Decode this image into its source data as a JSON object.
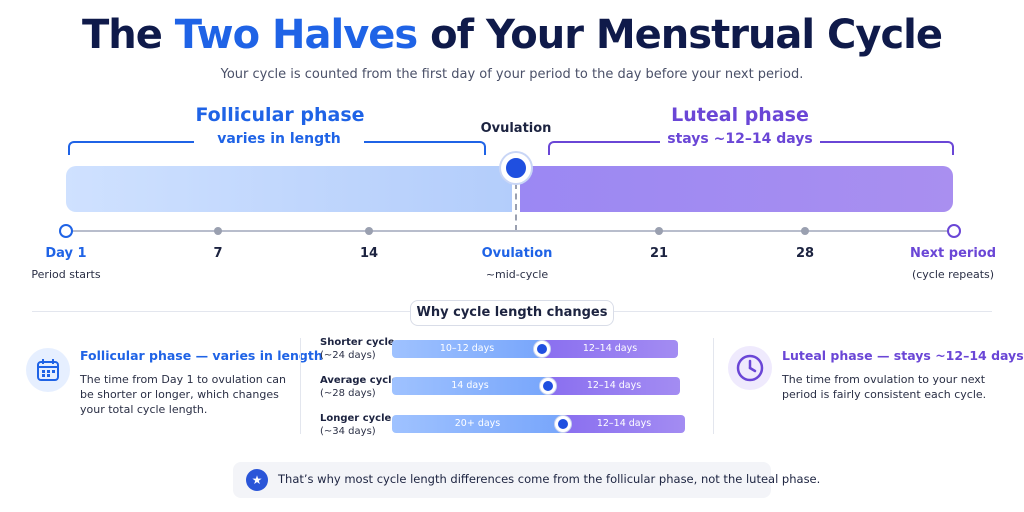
{
  "title": {
    "part1": "The ",
    "highlight": "Two Halves",
    "part2": " of Your Menstrual Cycle"
  },
  "subtitle": "Your cycle is counted from the first day of your period to the day before your next period.",
  "follicular": {
    "title": "Follicular phase",
    "sub": "varies in length"
  },
  "ovulation_label": "Ovulation",
  "luteal": {
    "title": "Luteal phase",
    "sub": "stays ~12–14 days"
  },
  "timeline": {
    "day1": "Day 1",
    "day1_sub": "Period starts",
    "t7": "7",
    "t14": "14",
    "ovulation": "Ovulation",
    "ovulation_sub": "~mid-cycle",
    "t21": "21",
    "t28": "28",
    "next": "Next period",
    "next_sub": "(cycle repeats)"
  },
  "why_title": "Why cycle length changes",
  "left_card": {
    "title": "Follicular phase — varies in length",
    "body": "The time from Day 1 to ovulation can be shorter or longer, which changes your total cycle length.",
    "icon": "calendar-icon"
  },
  "right_card": {
    "title": "Luteal phase — stays ~12–14 days",
    "body": "The time from ovulation to your next period is fairly consistent each cycle.",
    "icon": "clock-icon"
  },
  "rows": [
    {
      "label": "Shorter cycle",
      "sub": "(~24 days)",
      "foll": "10–12 days",
      "lut": "12–14 days"
    },
    {
      "label": "Average cycle",
      "sub": "(~28 days)",
      "foll": "14 days",
      "lut": "12–14 days"
    },
    {
      "label": "Longer cycle",
      "sub": "(~34 days)",
      "foll": "20+ days",
      "lut": "12–14 days"
    }
  ],
  "note": {
    "text": "That’s why most cycle length differences come from the follicular phase, not the luteal phase.",
    "icon": "star-icon"
  },
  "colors": {
    "blue": "#1f63e6",
    "purple": "#6a46d6",
    "navy": "#0f1a4a"
  }
}
